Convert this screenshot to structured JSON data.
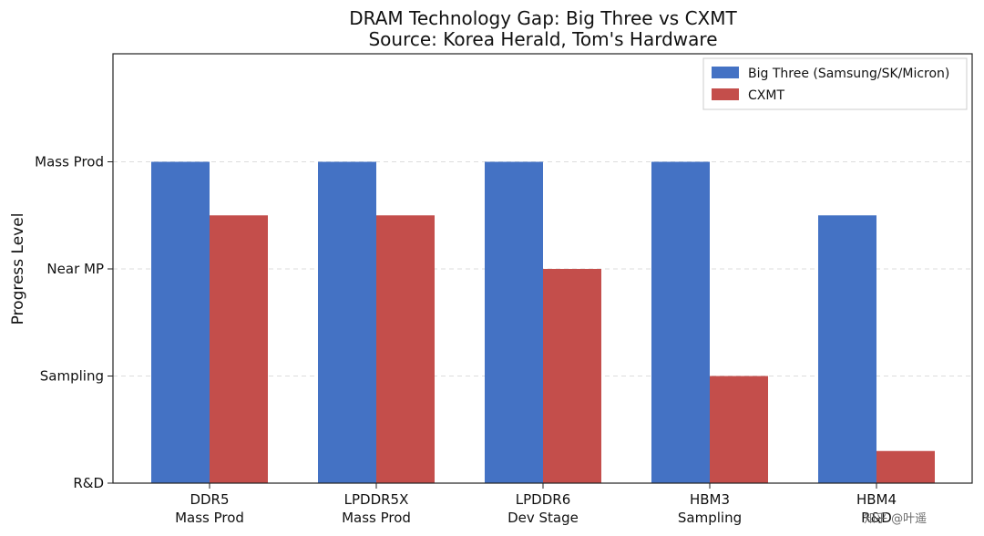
{
  "chart_data": {
    "type": "bar",
    "title": "DRAM Technology Gap: Big Three vs CXMT",
    "subtitle": "Source: Korea Herald, Tom's Hardware",
    "ylabel": "Progress Level",
    "xlabel": "",
    "categories": [
      {
        "line1": "DDR5",
        "line2": "Mass Prod"
      },
      {
        "line1": "LPDDR5X",
        "line2": "Mass Prod"
      },
      {
        "line1": "LPDDR6",
        "line2": "Dev Stage"
      },
      {
        "line1": "HBM3",
        "line2": "Sampling"
      },
      {
        "line1": "HBM4",
        "line2": "R&D"
      }
    ],
    "yticks": [
      {
        "value": 0,
        "label": "R&D"
      },
      {
        "value": 1,
        "label": "Sampling"
      },
      {
        "value": 2,
        "label": "Near MP"
      },
      {
        "value": 3,
        "label": "Mass Prod"
      }
    ],
    "ylim": [
      0,
      4
    ],
    "grid": "horizontal dashed",
    "legend_position": "top-right",
    "series": [
      {
        "name": "Big Three (Samsung/SK/Micron)",
        "color": "#4472c4",
        "values": [
          3,
          3,
          3,
          3,
          2.5
        ]
      },
      {
        "name": "CXMT",
        "color": "#c44e4b",
        "values": [
          2.5,
          2.5,
          2,
          1,
          0.3
        ]
      }
    ]
  },
  "watermark": "知乎 @叶遥"
}
